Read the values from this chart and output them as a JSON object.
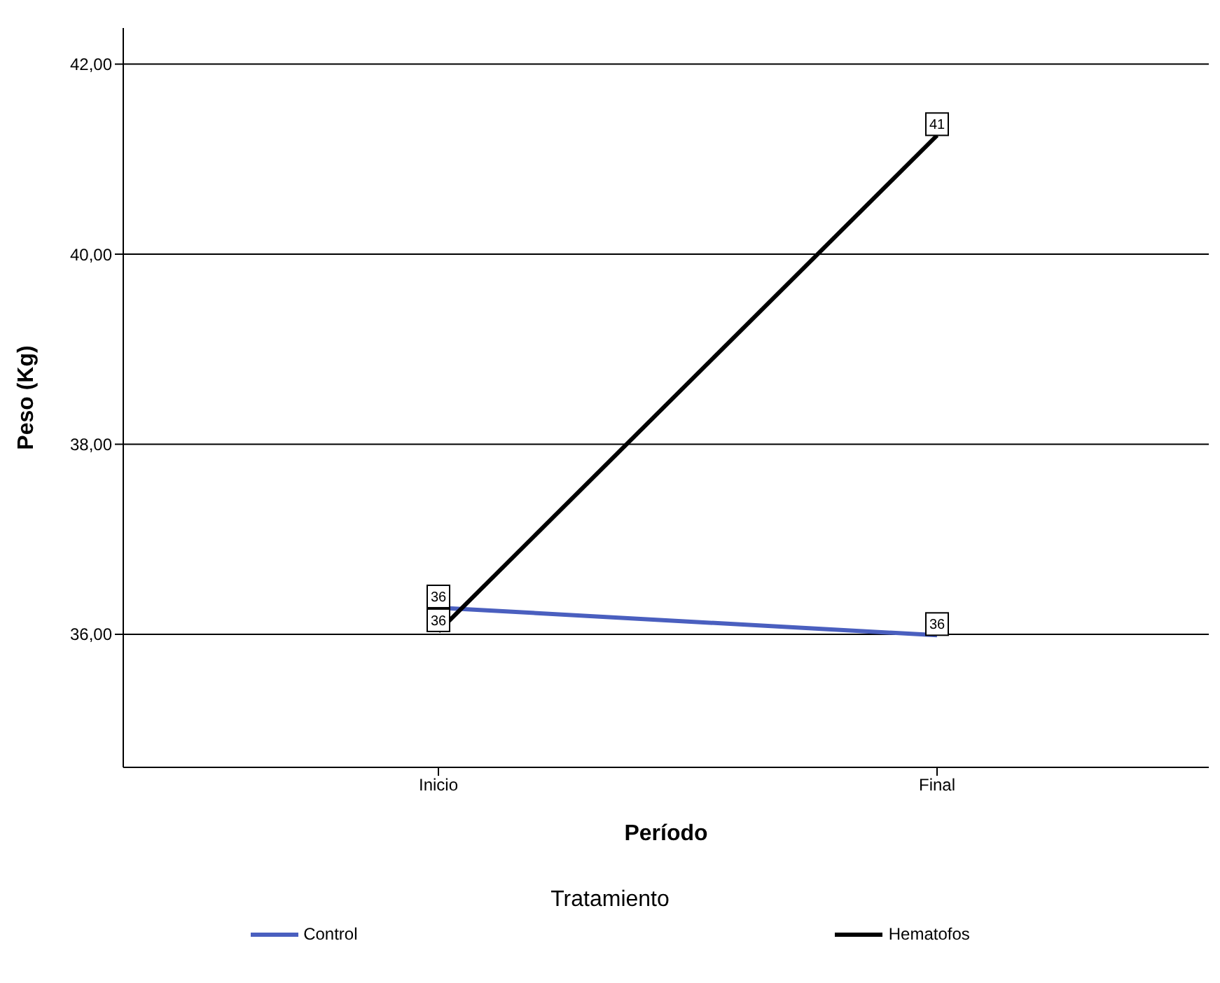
{
  "chart_data": {
    "type": "line",
    "xlabel": "Período",
    "ylabel": "Peso (Kg)",
    "legend_title": "Tratamiento",
    "categories": [
      "Inicio",
      "Final"
    ],
    "series": [
      {
        "name": "Control",
        "color": "#4a5fbf",
        "values": [
          36.28,
          35.99
        ],
        "value_labels": [
          "36",
          "36"
        ]
      },
      {
        "name": "Hematofos",
        "color": "#000000",
        "values": [
          36.03,
          41.25
        ],
        "value_labels": [
          "36",
          "41"
        ]
      }
    ],
    "ylim": [
      34.6,
      42.38
    ],
    "yticks": [
      {
        "value": 36,
        "label": "36,00"
      },
      {
        "value": 38,
        "label": "38,00"
      },
      {
        "value": 40,
        "label": "40,00"
      },
      {
        "value": 42,
        "label": "42,00"
      }
    ],
    "grid": "y",
    "legend": "bottom",
    "line_style": "solid"
  }
}
